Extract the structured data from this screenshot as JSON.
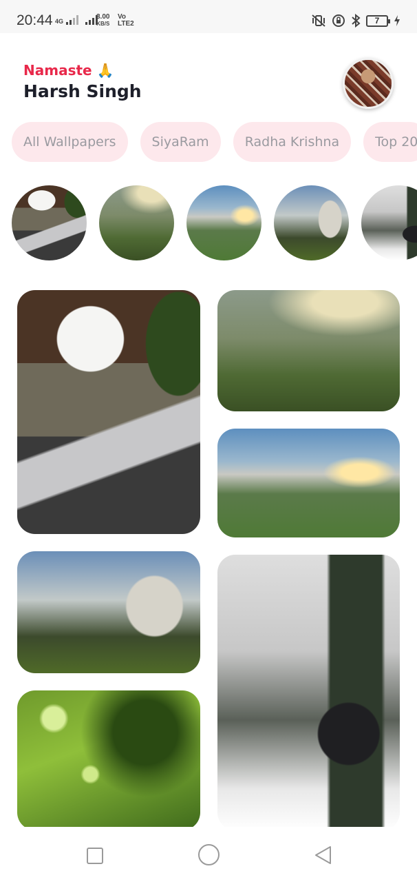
{
  "status_bar": {
    "time": "20:44",
    "network_type": "4G",
    "net_speed_value": "3.00",
    "net_speed_unit": "KB/S",
    "volte_top": "Vo",
    "volte_bottom": "LTE2",
    "battery_level": "7"
  },
  "header": {
    "greeting": "Namaste 🙏",
    "user_name": "Harsh Singh"
  },
  "categories": [
    {
      "label": "All Wallpapers"
    },
    {
      "label": "SiyaRam"
    },
    {
      "label": "Radha Krishna"
    },
    {
      "label": "Top 20"
    }
  ],
  "colors": {
    "greeting_accent": "#e8284a",
    "chip_background": "#fde8ec",
    "chip_text": "#9a9aa0"
  },
  "icons": {
    "nav_recent": "square-icon",
    "nav_home": "circle-icon",
    "nav_back": "triangle-back-icon"
  }
}
